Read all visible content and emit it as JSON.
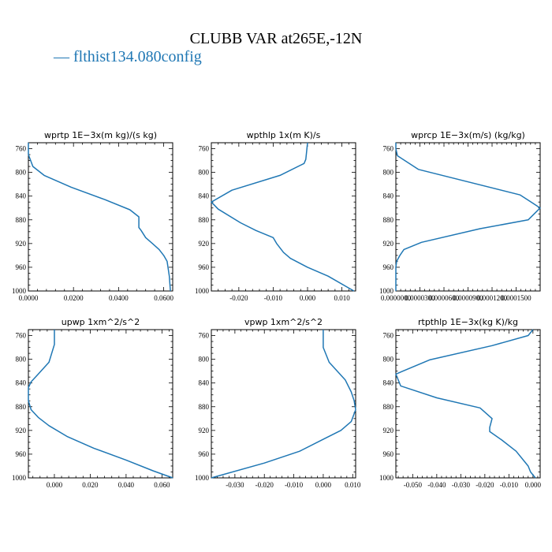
{
  "figure": {
    "title": "CLUBB VAR at265E,-12N",
    "legend": {
      "label": "— flthist134.080config",
      "color": "#1f77b4"
    }
  },
  "chart_data": [
    {
      "type": "line",
      "title": "wprtp  1E−3x(m kg)/(s kg)",
      "xlim": [
        0.0,
        0.064
      ],
      "ylim": [
        1000,
        750
      ],
      "xticks": [
        0.0,
        0.02,
        0.04,
        0.06
      ],
      "xticklabels": [
        "0.0000",
        "0.0200",
        "0.0400",
        "0.0600"
      ],
      "yticks": [
        760,
        800,
        840,
        880,
        920,
        960,
        1000
      ],
      "yticklabels": [
        "760",
        "800",
        "840",
        "880",
        "920",
        "960",
        "1000"
      ],
      "series": [
        {
          "x": [
            0.0,
            0.0,
            0.002,
            0.007,
            0.019,
            0.034,
            0.045,
            0.049,
            0.049,
            0.05,
            0.052,
            0.055,
            0.058,
            0.06,
            0.0615,
            0.0625,
            0.063
          ],
          "y": [
            750,
            770,
            790,
            805,
            825,
            846,
            863,
            875,
            893,
            898,
            910,
            920,
            930,
            940,
            950,
            975,
            1000
          ]
        }
      ]
    },
    {
      "type": "line",
      "title": "wpthlp  1x(m K)/s",
      "xlim": [
        -0.028,
        0.014
      ],
      "ylim": [
        1000,
        750
      ],
      "xticks": [
        -0.02,
        -0.01,
        0.0,
        0.01
      ],
      "xticklabels": [
        "-0.020",
        "-0.010",
        "0.000",
        "0.010"
      ],
      "yticks": [
        760,
        800,
        840,
        880,
        920,
        960,
        1000
      ],
      "yticklabels": [
        "760",
        "800",
        "840",
        "880",
        "920",
        "960",
        "1000"
      ],
      "series": [
        {
          "x": [
            0.0,
            -0.0005,
            -0.001,
            -0.008,
            -0.022,
            -0.028,
            -0.026,
            -0.0195,
            -0.015,
            -0.01,
            -0.009,
            -0.007,
            -0.005,
            0.0,
            0.006,
            0.0135
          ],
          "y": [
            750,
            778,
            785,
            805,
            830,
            850,
            862,
            885,
            898,
            910,
            920,
            935,
            945,
            960,
            975,
            1000
          ]
        }
      ]
    },
    {
      "type": "line",
      "title": "wprcp  1E−3x(m/s) (kg/kg)",
      "xlim": [
        0.0,
        0.00018
      ],
      "ylim": [
        1000,
        750
      ],
      "xticks": [
        0.0,
        3e-05,
        6e-05,
        9e-05,
        0.00012,
        0.00015
      ],
      "xticklabels": [
        "0.0000000",
        "0.0000300",
        "0.0000600",
        "0.0000900",
        "0.0001200",
        "0.0001500"
      ],
      "yticks": [
        760,
        800,
        840,
        880,
        920,
        960,
        1000
      ],
      "yticklabels": [
        "760",
        "800",
        "840",
        "880",
        "920",
        "960",
        "1000"
      ],
      "series": [
        {
          "x": [
            0.0,
            0.0,
            2e-06,
            2.8e-05,
            0.000155,
            0.00018,
            0.000165,
            0.000105,
            3.2e-05,
            1e-05,
            5e-06,
            1e-06,
            0.0,
            0.0
          ],
          "y": [
            750,
            760,
            772,
            795,
            838,
            860,
            880,
            895,
            918,
            930,
            940,
            950,
            960,
            1000
          ]
        }
      ]
    },
    {
      "type": "line",
      "title": "upwp  1xm^2/s^2",
      "xlim": [
        -0.0145,
        0.066
      ],
      "ylim": [
        1000,
        750
      ],
      "xticks": [
        0.0,
        0.02,
        0.04,
        0.06
      ],
      "xticklabels": [
        "0.000",
        "0.020",
        "0.040",
        "0.060"
      ],
      "yticks": [
        760,
        800,
        840,
        880,
        920,
        960,
        1000
      ],
      "yticklabels": [
        "760",
        "800",
        "840",
        "880",
        "920",
        "960",
        "1000"
      ],
      "series": [
        {
          "x": [
            0.0,
            0.0,
            -0.003,
            -0.009,
            -0.013,
            -0.0145,
            -0.0145,
            -0.013,
            -0.009,
            -0.003,
            0.007,
            0.022,
            0.04,
            0.055,
            0.066
          ],
          "y": [
            750,
            775,
            805,
            825,
            838,
            848,
            870,
            885,
            898,
            912,
            930,
            950,
            970,
            988,
            1000
          ]
        }
      ]
    },
    {
      "type": "line",
      "title": "vpwp  1xm^2/s^2",
      "xlim": [
        -0.038,
        0.011
      ],
      "ylim": [
        1000,
        750
      ],
      "xticks": [
        -0.03,
        -0.02,
        -0.01,
        0.0,
        0.01
      ],
      "xticklabels": [
        "-0.030",
        "-0.020",
        "-0.010",
        "0.000",
        "0.010"
      ],
      "yticks": [
        760,
        800,
        840,
        880,
        920,
        960,
        1000
      ],
      "yticklabels": [
        "760",
        "800",
        "840",
        "880",
        "920",
        "960",
        "1000"
      ],
      "series": [
        {
          "x": [
            0.0,
            0.0,
            0.002,
            0.0075,
            0.0095,
            0.0105,
            0.011,
            0.0095,
            0.006,
            0.0,
            -0.008,
            -0.02,
            -0.038
          ],
          "y": [
            750,
            780,
            805,
            835,
            855,
            870,
            885,
            905,
            920,
            935,
            955,
            975,
            1000
          ]
        }
      ]
    },
    {
      "type": "line",
      "title": "rtpthlp  1E−3x(kg K)/kg",
      "xlim": [
        -0.057,
        0.003
      ],
      "ylim": [
        1000,
        750
      ],
      "xticks": [
        -0.05,
        -0.04,
        -0.03,
        -0.02,
        -0.01,
        0.0
      ],
      "xticklabels": [
        "-0.050",
        "-0.040",
        "-0.030",
        "-0.020",
        "-0.010",
        "0.000"
      ],
      "yticks": [
        760,
        800,
        840,
        880,
        920,
        960,
        1000
      ],
      "yticklabels": [
        "760",
        "800",
        "840",
        "880",
        "920",
        "960",
        "1000"
      ],
      "series": [
        {
          "x": [
            0.0,
            -0.002,
            -0.017,
            -0.043,
            -0.057,
            -0.055,
            -0.04,
            -0.022,
            -0.017,
            -0.018,
            -0.018,
            -0.013,
            -0.007,
            -0.004,
            -0.002,
            -0.001,
            0.001
          ],
          "y": [
            750,
            760,
            777,
            801,
            825,
            845,
            865,
            882,
            900,
            915,
            922,
            936,
            955,
            970,
            980,
            990,
            1000
          ]
        }
      ]
    }
  ]
}
